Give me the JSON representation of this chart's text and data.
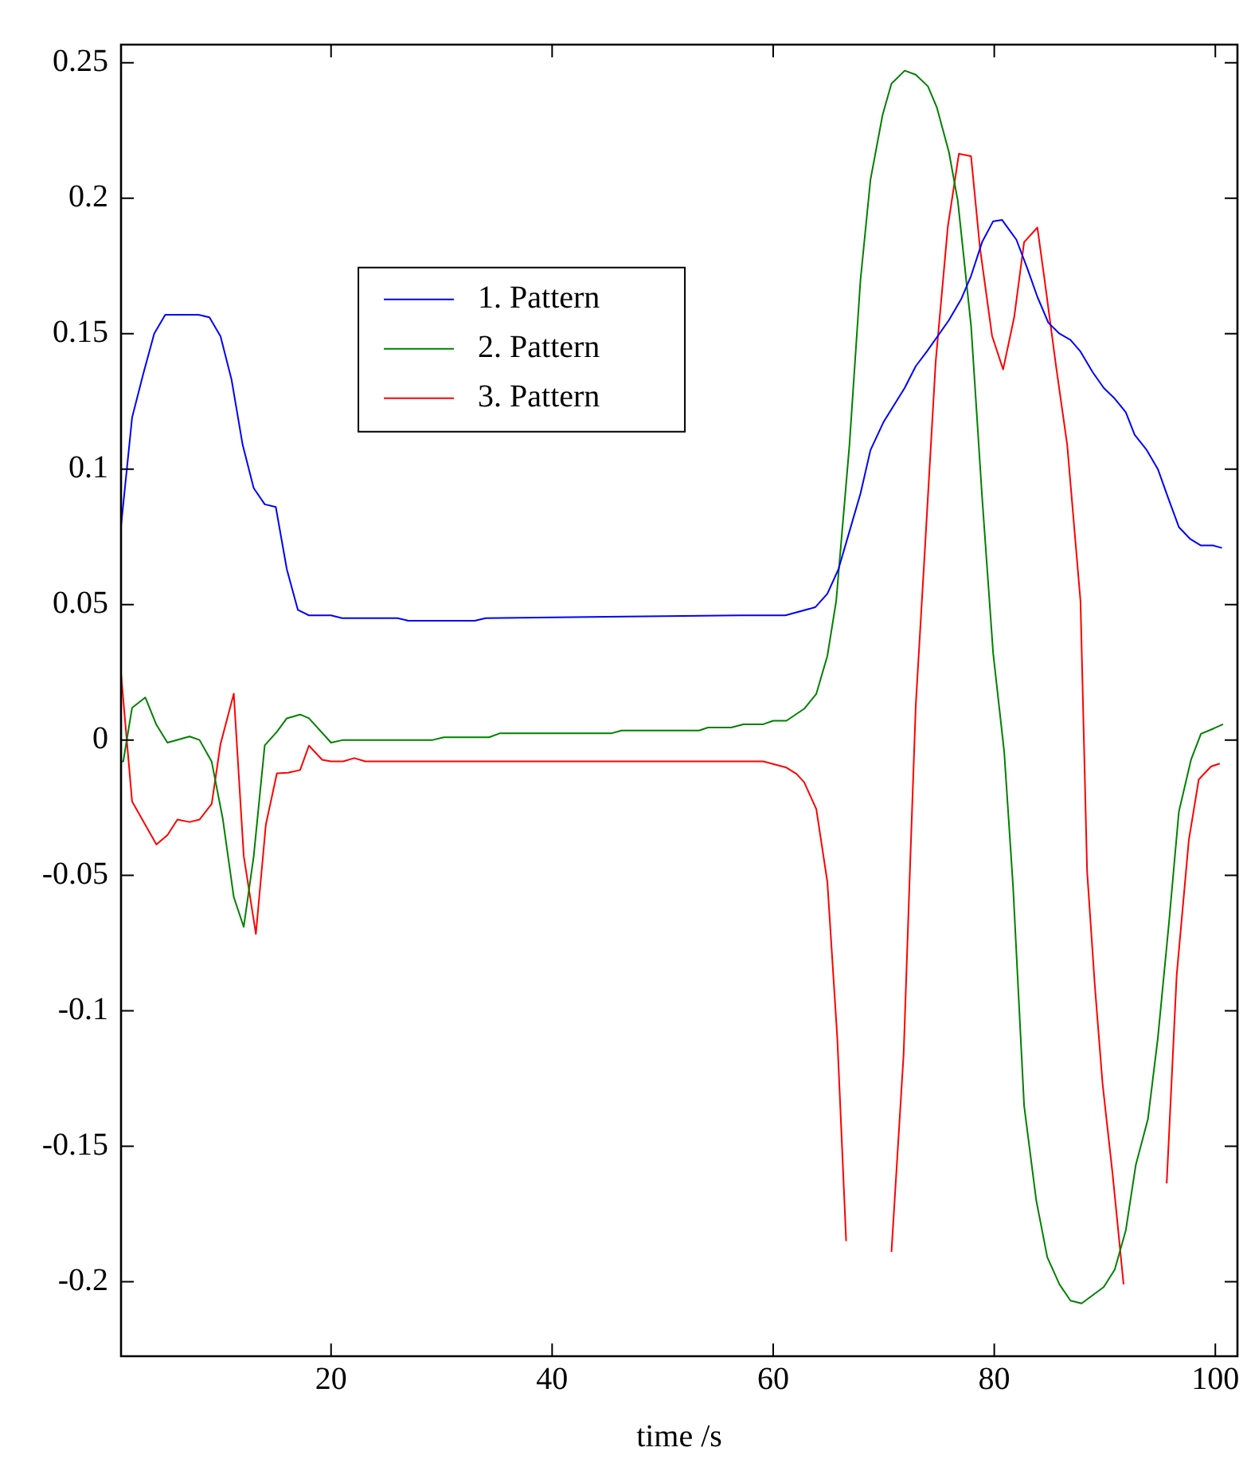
{
  "chart_data": {
    "type": "line",
    "xlabel": "time /s",
    "xlim": [
      1,
      102
    ],
    "ylim": [
      -0.2275,
      0.2567
    ],
    "xticks": [
      20,
      40,
      60,
      80,
      100
    ],
    "yticks": [
      -0.2,
      -0.15,
      -0.1,
      -0.05,
      0,
      0.05,
      0.1,
      0.15,
      0.2,
      0.25
    ],
    "grid": false,
    "legend": "top left",
    "marker": "none",
    "line_style": "solid",
    "series": [
      {
        "name": "1. Pattern",
        "color": "#0000ff",
        "x": [
          1,
          2,
          3,
          4,
          5,
          6,
          8,
          9,
          10,
          11,
          12,
          13,
          14,
          15,
          16,
          17,
          18,
          20,
          21,
          26,
          27,
          33,
          34,
          57,
          61.1,
          63.8,
          64.9,
          65.9,
          66.9,
          67.9,
          68.8,
          70,
          71.9,
          72.9,
          73.9,
          75.9,
          77,
          77.9,
          78.9,
          79.9,
          80.7,
          82,
          83,
          83.9,
          84.9,
          85.9,
          86.9,
          87.8,
          88.9,
          89.9,
          90.9,
          91.9,
          92.7,
          93.8,
          94.8,
          95.7,
          96.7,
          97.7,
          98.7,
          99.8,
          100.6
        ],
        "values": [
          0.079,
          0.119,
          0.135,
          0.15,
          0.157,
          0.157,
          0.157,
          0.156,
          0.149,
          0.133,
          0.109,
          0.093,
          0.087,
          0.086,
          0.063,
          0.048,
          0.046,
          0.046,
          0.045,
          0.045,
          0.044,
          0.044,
          0.045,
          0.046,
          0.046,
          0.049,
          0.054,
          0.063,
          0.077,
          0.091,
          0.107,
          0.1175,
          0.13,
          0.138,
          0.1434,
          0.155,
          0.1627,
          0.1713,
          0.1838,
          0.1915,
          0.192,
          0.1847,
          0.174,
          0.1636,
          0.154,
          0.15,
          0.1477,
          0.1434,
          0.1358,
          0.13,
          0.126,
          0.121,
          0.1127,
          0.107,
          0.1,
          0.0897,
          0.0786,
          0.0743,
          0.0718,
          0.0718,
          0.0709
        ]
      },
      {
        "name": "2. Pattern",
        "color": "#008000",
        "x": [
          1,
          1.2,
          2,
          3.2,
          4.2,
          5.2,
          7.2,
          8.1,
          9.2,
          10.2,
          11.2,
          12.1,
          13,
          14,
          15.1,
          16,
          17.2,
          18,
          20,
          21.1,
          29.2,
          30.2,
          34.3,
          35.3,
          45.4,
          46.3,
          53.3,
          54.1,
          56.2,
          57.3,
          59.1,
          60,
          61.2,
          62.8,
          63.9,
          64.9,
          65.7,
          66.9,
          67.9,
          68.8,
          69.9,
          70.7,
          71.9,
          72.9,
          74,
          74.8,
          75.9,
          76.7,
          77.9,
          78.9,
          79.9,
          80.9,
          81.7,
          82.7,
          83.8,
          84.8,
          85.9,
          86.9,
          87.9,
          88.9,
          89.9,
          90.9,
          91.9,
          92.8,
          93.9,
          94.8,
          95.8,
          96.7,
          97.8,
          98.7,
          99.6,
          100.7
        ],
        "values": [
          -0.0079,
          -0.0079,
          0.0119,
          0.0157,
          0.0056,
          -0.001,
          0.0013,
          0,
          -0.008,
          -0.029,
          -0.058,
          -0.069,
          -0.043,
          -0.002,
          0.003,
          0.008,
          0.0094,
          0.008,
          -0.001,
          0,
          0,
          0.001,
          0.001,
          0.0025,
          0.0025,
          0.0035,
          0.0035,
          0.0046,
          0.0046,
          0.0058,
          0.0058,
          0.0071,
          0.0071,
          0.0115,
          0.017,
          0.031,
          0.0513,
          0.109,
          0.17,
          0.2068,
          0.2308,
          0.2423,
          0.2471,
          0.2456,
          0.2413,
          0.2336,
          0.217,
          0.1991,
          0.153,
          0.0897,
          0.032,
          -0.0044,
          -0.054,
          -0.135,
          -0.17,
          -0.191,
          -0.201,
          -0.207,
          -0.208,
          -0.205,
          -0.202,
          -0.1955,
          -0.181,
          -0.157,
          -0.14,
          -0.11,
          -0.0677,
          -0.0265,
          -0.0073,
          0.0023,
          0.0038,
          0.0058
        ]
      },
      {
        "name": "3. Pattern",
        "color": "#ff0000",
        "x": [
          1,
          2,
          4.2,
          5.2,
          6.1,
          7.2,
          8.1,
          9.2,
          10,
          11.2,
          12.1,
          13.2,
          14.1,
          15.1,
          16.1,
          17.2,
          18,
          19.2,
          20,
          21.1,
          22.1,
          23.1,
          59.1,
          61.2,
          62.1,
          62.8,
          63.9,
          64.9,
          65.8,
          66.6,
          67.6,
          68.7,
          69.9,
          70.7,
          71.8,
          72.4,
          72.9,
          73.7,
          74.7,
          75.8,
          76.8,
          77.9,
          78.7,
          79.8,
          80.8,
          81.8,
          82.7,
          83.9,
          84.6,
          85.6,
          86.6,
          87.8,
          88.4,
          89.1,
          89.8,
          90.7,
          91.7,
          92,
          93.5,
          94.9,
          95.6,
          96.5,
          97.6,
          98.5,
          99.6,
          100.4
        ],
        "values": [
          0.0244,
          -0.0227,
          -0.0386,
          -0.0351,
          -0.0294,
          -0.0303,
          -0.0294,
          -0.0236,
          -0.0015,
          0.0171,
          -0.0428,
          -0.0716,
          -0.0313,
          -0.0123,
          -0.0121,
          -0.0111,
          -0.0021,
          -0.0073,
          -0.0079,
          -0.0079,
          -0.0067,
          -0.0079,
          -0.0079,
          -0.0102,
          -0.0125,
          -0.0156,
          -0.0255,
          -0.0524,
          -0.11,
          -0.185,
          null,
          null,
          null,
          -0.189,
          -0.116,
          -0.0447,
          0.0129,
          0.0686,
          0.1396,
          0.1895,
          0.2164,
          0.2155,
          0.1819,
          0.1492,
          0.1368,
          0.156,
          0.1838,
          0.1892,
          0.1684,
          0.1377,
          0.1089,
          0.0513,
          -0.0485,
          -0.0908,
          -0.127,
          -0.16,
          -0.201,
          null,
          null,
          null,
          -0.1637,
          -0.087,
          -0.037,
          -0.0146,
          -0.0098,
          -0.0087
        ]
      }
    ]
  }
}
